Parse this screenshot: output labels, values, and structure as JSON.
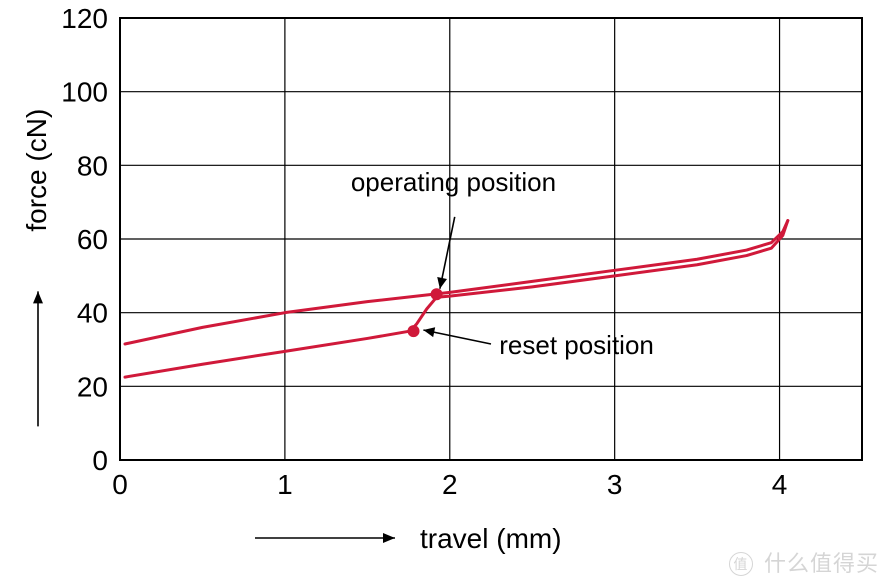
{
  "chart": {
    "type": "line",
    "background_color": "#ffffff",
    "grid_color": "#000000",
    "grid_stroke": 1.2,
    "border_stroke": 2,
    "line_color": "#d0193a",
    "line_width": 3,
    "marker_color": "#d0193a",
    "marker_radius": 6,
    "x": {
      "label": "travel (mm)",
      "min": 0,
      "max": 4.5,
      "ticks": [
        0,
        1,
        2,
        3,
        4
      ],
      "tick_labels": [
        "0",
        "1",
        "2",
        "3",
        "4"
      ],
      "label_fontsize": 28,
      "tick_fontsize": 28
    },
    "y": {
      "label": "force (cN)",
      "min": 0,
      "max": 120,
      "ticks": [
        0,
        20,
        40,
        60,
        80,
        100,
        120
      ],
      "tick_labels": [
        "0",
        "20",
        "40",
        "60",
        "80",
        "100",
        "120"
      ],
      "label_fontsize": 28,
      "tick_fontsize": 28
    },
    "series": {
      "press": [
        [
          0.03,
          31.5
        ],
        [
          0.5,
          36
        ],
        [
          1.0,
          40
        ],
        [
          1.5,
          43
        ],
        [
          2.0,
          45.5
        ],
        [
          2.5,
          48.5
        ],
        [
          3.0,
          51.5
        ],
        [
          3.5,
          54.5
        ],
        [
          3.8,
          57
        ],
        [
          3.95,
          59
        ],
        [
          4.02,
          62
        ],
        [
          4.05,
          65
        ]
      ],
      "release_upper": [
        [
          4.05,
          65
        ],
        [
          4.02,
          61
        ],
        [
          3.95,
          57.5
        ],
        [
          3.8,
          55.5
        ],
        [
          3.5,
          53
        ],
        [
          3.0,
          50
        ],
        [
          2.5,
          47
        ],
        [
          2.0,
          44.5
        ],
        [
          1.92,
          44.2
        ]
      ],
      "release_drop": [
        [
          1.92,
          44.2
        ],
        [
          1.86,
          41
        ],
        [
          1.8,
          37
        ],
        [
          1.76,
          35
        ]
      ],
      "release_lower": [
        [
          1.76,
          35
        ],
        [
          1.5,
          33
        ],
        [
          1.0,
          29.5
        ],
        [
          0.5,
          26
        ],
        [
          0.03,
          22.5
        ]
      ]
    },
    "annotations": {
      "operating": {
        "label": "operating position",
        "point": [
          1.92,
          45
        ],
        "text_anchor": [
          1.4,
          73
        ],
        "arrow_start": [
          2.03,
          66
        ],
        "fontsize": 26
      },
      "reset": {
        "label": "reset position",
        "point": [
          1.78,
          35
        ],
        "text_anchor": [
          2.3,
          31
        ],
        "arrow_start": [
          2.25,
          31.5
        ],
        "fontsize": 26
      }
    }
  },
  "watermark": {
    "badge": "值",
    "text": "什么值得买"
  }
}
